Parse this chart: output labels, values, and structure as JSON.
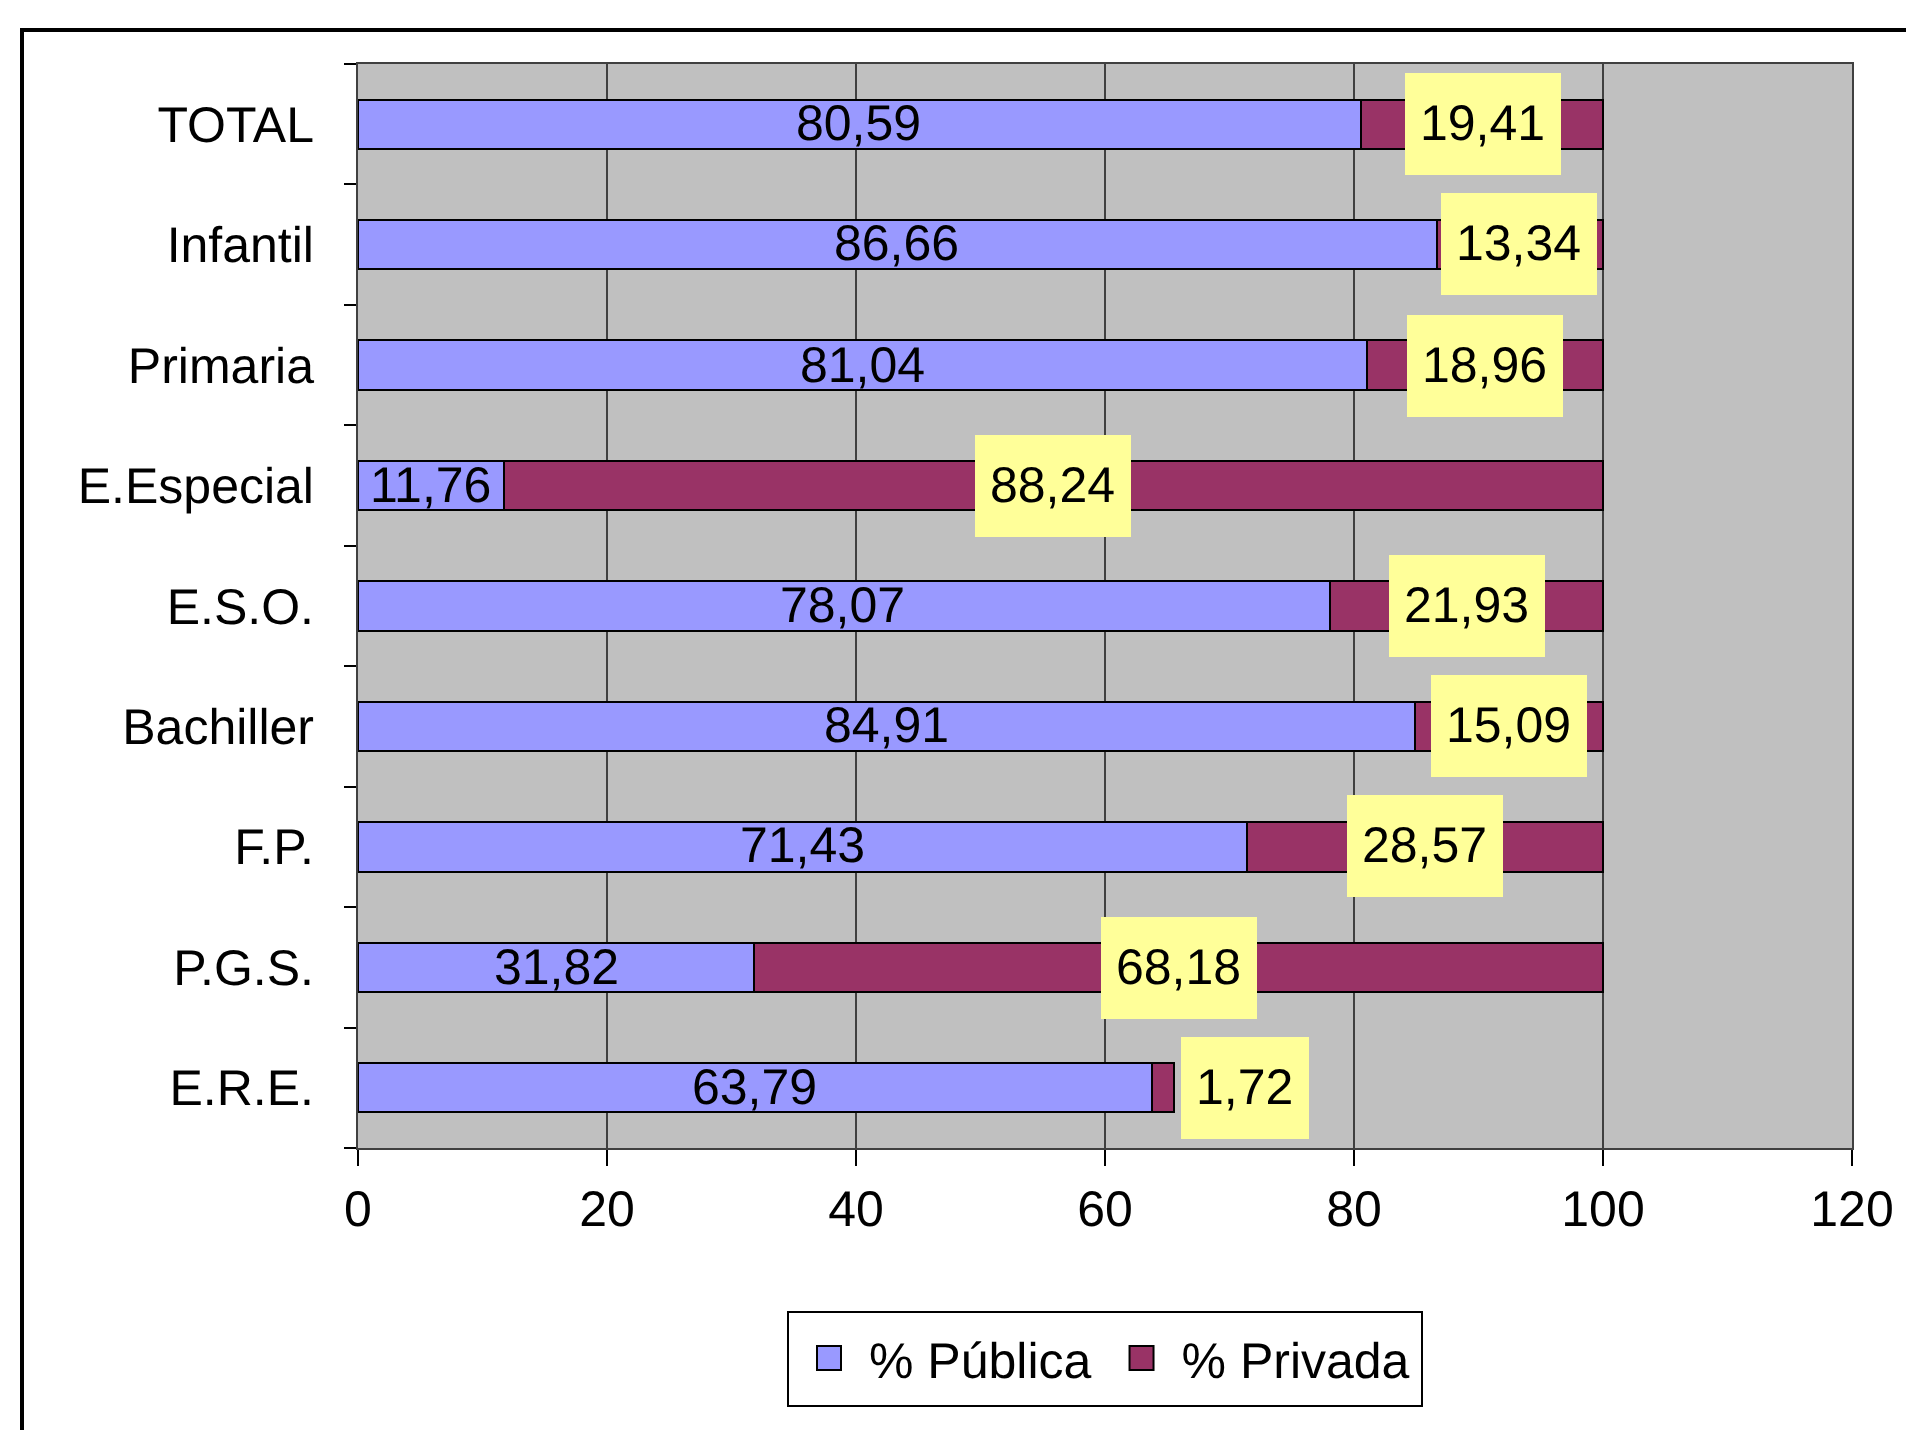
{
  "chart_data": {
    "type": "bar",
    "orientation": "horizontal",
    "stacked": true,
    "categories": [
      "TOTAL",
      "Infantil",
      "Primaria",
      "E.Especial",
      "E.S.O.",
      "Bachiller",
      "F.P.",
      "P.G.S.",
      "E.R.E."
    ],
    "series": [
      {
        "name": "% Pública",
        "color": "#9999ff",
        "values": [
          80.59,
          86.66,
          81.04,
          11.76,
          78.07,
          84.91,
          71.43,
          31.82,
          63.79
        ],
        "value_labels": [
          "80,59",
          "86,66",
          "81,04",
          "11,76",
          "78,07",
          "84,91",
          "71,43",
          "31,82",
          "63,79"
        ]
      },
      {
        "name": "% Privada",
        "color": "#993366",
        "values": [
          19.41,
          13.34,
          18.96,
          88.24,
          21.93,
          15.09,
          28.57,
          68.18,
          1.72
        ],
        "value_labels": [
          "19,41",
          "13,34",
          "18,96",
          "88,24",
          "21,93",
          "15,09",
          "28,57",
          "68,18",
          "1,72"
        ]
      }
    ],
    "xlim": [
      0,
      120
    ],
    "xticks": [
      0,
      20,
      40,
      60,
      80,
      100,
      120
    ],
    "grid": "x",
    "legend": "bottom"
  }
}
